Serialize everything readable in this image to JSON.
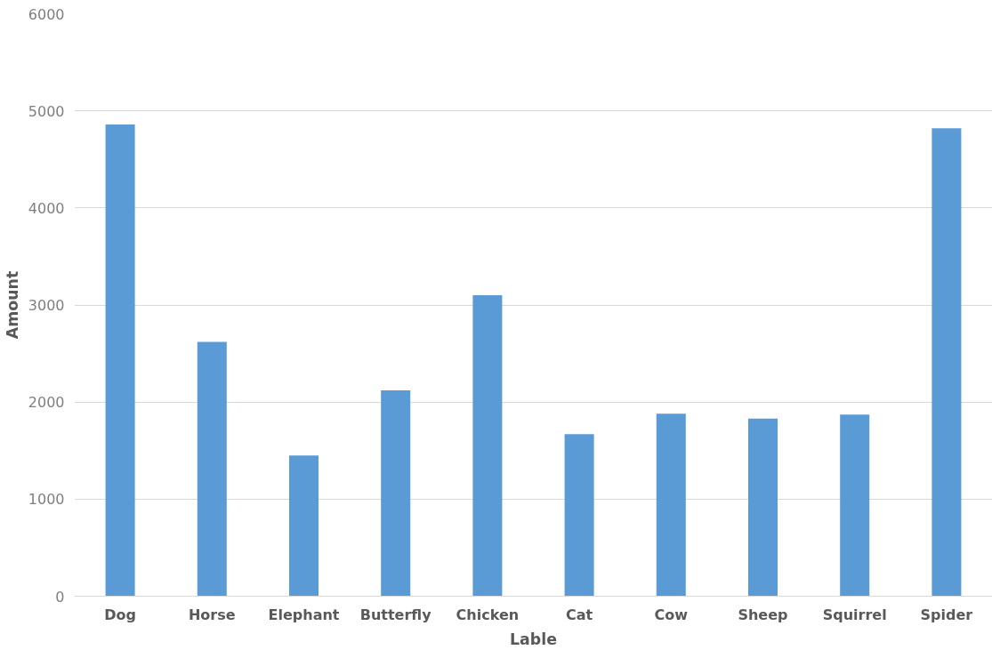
{
  "chart_data": {
    "type": "bar",
    "xlabel": "Lable",
    "ylabel": "Amount",
    "categories": [
      "Dog",
      "Horse",
      "Elephant",
      "Butterfly",
      "Chicken",
      "Cat",
      "Cow",
      "Sheep",
      "Squirrel",
      "Spider"
    ],
    "values": [
      4860,
      2620,
      1450,
      2120,
      3100,
      1670,
      1880,
      1830,
      1870,
      4820
    ],
    "color": "#5b9bd5",
    "ylim": [
      0,
      6000
    ],
    "yticks": [
      0,
      1000,
      2000,
      3000,
      4000,
      5000,
      6000
    ],
    "grid": "y"
  }
}
